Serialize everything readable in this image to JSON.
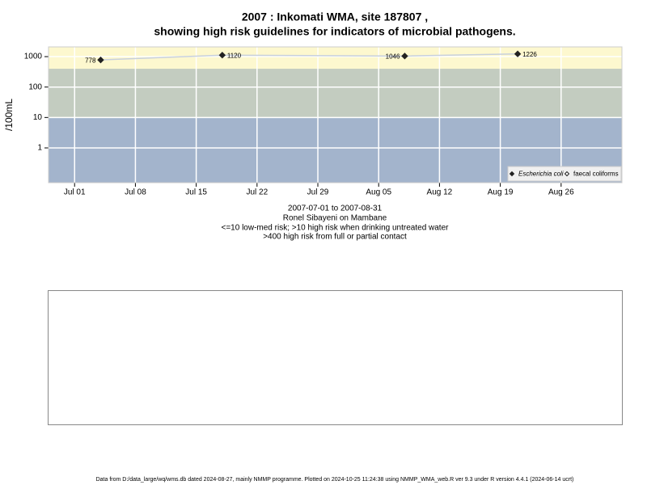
{
  "chart_data": {
    "type": "line",
    "title": "2007 : Inkomati WMA, site 187807 ,",
    "subtitle": "showing high risk guidelines for indicators of microbial pathogens.",
    "y_label": "/100mL",
    "x": [
      "2007-07-04",
      "2007-07-18",
      "2007-08-08",
      "2007-08-21"
    ],
    "series": [
      {
        "name": "Escherichia coli",
        "color": "#222222",
        "line_color": "#c8d0dc",
        "marker": "filled",
        "values": [
          778,
          1120,
          1046,
          1226
        ]
      },
      {
        "name": "faecal coliforms",
        "color": "#222222",
        "line_color": "#c8d0dc",
        "marker": "open",
        "values": [
          null,
          null,
          null,
          null
        ]
      }
    ],
    "log_scale": true,
    "ylim": [
      0.072,
      2090
    ],
    "yticks": [
      1,
      10,
      100,
      1000
    ],
    "xlim": [
      "2007-06-28",
      "2007-09-02"
    ],
    "xticks": [
      {
        "value": "2007-07-01",
        "label": "Jul 01"
      },
      {
        "value": "2007-07-08",
        "label": "Jul 08"
      },
      {
        "value": "2007-07-15",
        "label": "Jul 15"
      },
      {
        "value": "2007-07-22",
        "label": "Jul 22"
      },
      {
        "value": "2007-07-29",
        "label": "Jul 29"
      },
      {
        "value": "2007-08-05",
        "label": "Aug 05"
      },
      {
        "value": "2007-08-12",
        "label": "Aug 12"
      },
      {
        "value": "2007-08-19",
        "label": "Aug 19"
      },
      {
        "value": "2007-08-26",
        "label": "Aug 26"
      }
    ],
    "grid": true,
    "thresholds": [
      10,
      400
    ],
    "band_colors": [
      "#a3b4cc",
      "#c3ccc0",
      "#fdf8cf"
    ],
    "legend": "bottom-right",
    "notes": [
      "2007-07-01 to 2007-08-31",
      "Ronel Sibayeni on Mambane",
      "<=10 low-med risk; >10 high risk when drinking untreated water",
      ">400 high risk from full or partial contact"
    ],
    "footer": "Data from D:/data_large/wq/wms.db dated 2024-08-27, mainly NMMP programme. Plotted on 2024-10-25 11:24:38 using NMMP_WMA_web.R ver 9.3 under R version 4.4.1 (2024-06-14 ucrt)"
  }
}
